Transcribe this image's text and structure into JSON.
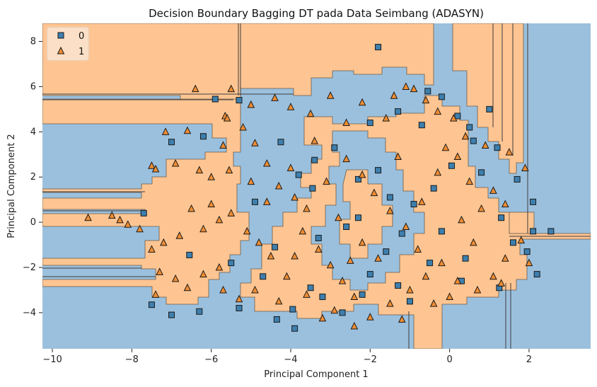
{
  "chart_data": {
    "type": "scatter",
    "title": "Decision Boundary Bagging DT pada Data Seimbang (ADASYN)",
    "xlabel": "Principal Component 1",
    "ylabel": "Principal Component 2",
    "xlim": [
      -10.25,
      3.55
    ],
    "ylim": [
      -5.6,
      8.8
    ],
    "xticks": [
      -10,
      -8,
      -6,
      -4,
      -2,
      0,
      2
    ],
    "yticks": [
      -4,
      -2,
      0,
      2,
      4,
      6,
      8
    ],
    "grid": false,
    "legend_position": "top-left",
    "region_colors": {
      "0": "#9bc0dd",
      "1": "#fec592"
    },
    "series": [
      {
        "name": "0",
        "marker": "square",
        "color": "#3d7fae",
        "points": [
          [
            -1.8,
            7.75
          ],
          [
            -5.9,
            5.45
          ],
          [
            -7.0,
            3.55
          ],
          [
            -6.2,
            3.8
          ],
          [
            -7.7,
            0.4
          ],
          [
            -5.3,
            5.4
          ],
          [
            -4.25,
            3.55
          ],
          [
            -3.4,
            2.75
          ],
          [
            -3.45,
            1.5
          ],
          [
            -2.3,
            1.9
          ],
          [
            -1.8,
            2.3
          ],
          [
            -1.5,
            1.1
          ],
          [
            -1.2,
            -0.5
          ],
          [
            -0.9,
            0.8
          ],
          [
            -0.55,
            5.8
          ],
          [
            -0.2,
            5.55
          ],
          [
            0.2,
            4.7
          ],
          [
            0.6,
            3.6
          ],
          [
            1.2,
            3.3
          ],
          [
            1.7,
            1.9
          ],
          [
            2.1,
            0.9
          ],
          [
            2.55,
            -0.4
          ],
          [
            2.1,
            -0.4
          ],
          [
            1.95,
            -1.3
          ],
          [
            2.2,
            -2.3
          ],
          [
            1.25,
            -2.9
          ],
          [
            0.3,
            -2.6
          ],
          [
            -0.5,
            -1.8
          ],
          [
            -1.3,
            -2.8
          ],
          [
            -2.2,
            -3.2
          ],
          [
            -3.2,
            -3.3
          ],
          [
            -3.95,
            -3.85
          ],
          [
            -4.35,
            -4.3
          ],
          [
            -3.9,
            -4.7
          ],
          [
            -2.7,
            -4.0
          ],
          [
            -5.3,
            -3.8
          ],
          [
            -6.3,
            -3.95
          ],
          [
            -7.0,
            -4.1
          ],
          [
            -7.5,
            -3.65
          ],
          [
            -6.55,
            -1.45
          ],
          [
            -4.7,
            -2.4
          ],
          [
            -4.4,
            -1.1
          ],
          [
            -3.3,
            -0.7
          ],
          [
            -2.6,
            -0.2
          ],
          [
            -2.3,
            0.2
          ],
          [
            -1.6,
            -1.3
          ],
          [
            -0.4,
            1.5
          ],
          [
            0.05,
            2.5
          ],
          [
            0.8,
            2.2
          ],
          [
            1.3,
            0.2
          ],
          [
            1.6,
            -0.9
          ],
          [
            0.4,
            -1.6
          ],
          [
            -0.2,
            -0.4
          ],
          [
            -2.9,
            3.3
          ],
          [
            -2.0,
            4.4
          ],
          [
            -1.3,
            4.9
          ],
          [
            -0.7,
            4.3
          ],
          [
            0.5,
            4.2
          ],
          [
            1.0,
            5.0
          ],
          [
            -3.8,
            2.1
          ],
          [
            -4.9,
            0.9
          ],
          [
            -5.5,
            -1.8
          ],
          [
            -2.0,
            -2.3
          ],
          [
            -1.0,
            -3.5
          ],
          [
            -3.5,
            -2.9
          ]
        ]
      },
      {
        "name": "1",
        "marker": "triangle",
        "color": "#f08d32",
        "points": [
          [
            -7.15,
            4.0
          ],
          [
            -6.6,
            4.05
          ],
          [
            -7.5,
            2.5
          ],
          [
            -7.4,
            2.35
          ],
          [
            -6.9,
            2.6
          ],
          [
            -6.3,
            2.3
          ],
          [
            -6.0,
            2.0
          ],
          [
            -5.55,
            2.3
          ],
          [
            -5.7,
            3.4
          ],
          [
            -5.65,
            4.7
          ],
          [
            -5.2,
            4.2
          ],
          [
            -4.9,
            3.5
          ],
          [
            -4.6,
            2.6
          ],
          [
            -4.3,
            1.6
          ],
          [
            -4.0,
            2.4
          ],
          [
            -3.9,
            1.1
          ],
          [
            -3.6,
            0.6
          ],
          [
            -3.7,
            -0.4
          ],
          [
            -3.3,
            -1.2
          ],
          [
            -3.0,
            -1.9
          ],
          [
            -2.7,
            -2.6
          ],
          [
            -2.4,
            -3.3
          ],
          [
            -2.9,
            -3.9
          ],
          [
            -3.2,
            -4.25
          ],
          [
            -3.6,
            -3.2
          ],
          [
            -4.1,
            -2.4
          ],
          [
            -4.5,
            -1.5
          ],
          [
            -4.8,
            -0.9
          ],
          [
            -5.1,
            -0.4
          ],
          [
            -5.5,
            0.4
          ],
          [
            -5.8,
            0.1
          ],
          [
            -6.2,
            -0.3
          ],
          [
            -6.5,
            0.6
          ],
          [
            -6.8,
            -0.6
          ],
          [
            -7.2,
            -0.9
          ],
          [
            -7.5,
            -1.2
          ],
          [
            -7.8,
            -0.3
          ],
          [
            -8.1,
            -0.1
          ],
          [
            -8.5,
            0.3
          ],
          [
            -9.1,
            0.2
          ],
          [
            -7.3,
            -2.2
          ],
          [
            -6.9,
            -2.5
          ],
          [
            -6.2,
            -2.3
          ],
          [
            -5.8,
            -2.0
          ],
          [
            -7.4,
            -3.2
          ],
          [
            -6.6,
            -2.9
          ],
          [
            -5.3,
            -3.4
          ],
          [
            -4.9,
            -3.0
          ],
          [
            -4.3,
            -3.5
          ],
          [
            -2.0,
            -4.2
          ],
          [
            -1.5,
            -3.6
          ],
          [
            -1.0,
            -3.0
          ],
          [
            -0.6,
            -2.4
          ],
          [
            -0.2,
            -1.8
          ],
          [
            0.2,
            -2.6
          ],
          [
            0.7,
            -3.0
          ],
          [
            1.1,
            -2.4
          ],
          [
            1.4,
            -1.6
          ],
          [
            1.8,
            -0.8
          ],
          [
            2.0,
            -1.8
          ],
          [
            0.6,
            -0.9
          ],
          [
            0.3,
            0.1
          ],
          [
            0.8,
            0.6
          ],
          [
            1.1,
            1.4
          ],
          [
            1.4,
            0.8
          ],
          [
            0.5,
            1.8
          ],
          [
            0.2,
            2.9
          ],
          [
            0.4,
            3.8
          ],
          [
            0.1,
            4.6
          ],
          [
            -0.3,
            4.9
          ],
          [
            -0.6,
            5.4
          ],
          [
            -0.9,
            5.9
          ],
          [
            -1.1,
            6.0
          ],
          [
            -1.4,
            5.6
          ],
          [
            -1.6,
            4.6
          ],
          [
            -2.2,
            5.3
          ],
          [
            -2.6,
            4.4
          ],
          [
            -3.0,
            5.6
          ],
          [
            -3.5,
            4.8
          ],
          [
            -4.0,
            5.1
          ],
          [
            -4.4,
            5.5
          ],
          [
            -5.0,
            5.2
          ],
          [
            -5.6,
            4.6
          ],
          [
            -6.4,
            5.9
          ],
          [
            -5.5,
            5.9
          ],
          [
            -2.6,
            2.8
          ],
          [
            -2.2,
            2.1
          ],
          [
            -1.9,
            1.3
          ],
          [
            -1.5,
            0.5
          ],
          [
            -1.1,
            -0.2
          ],
          [
            -0.7,
            0.9
          ],
          [
            -0.3,
            2.2
          ],
          [
            -0.1,
            3.3
          ],
          [
            -2.8,
            0.2
          ],
          [
            -3.1,
            1.8
          ],
          [
            -3.4,
            3.6
          ],
          [
            -1.3,
            2.9
          ],
          [
            -0.8,
            -1.2
          ],
          [
            -1.8,
            -1.6
          ],
          [
            -2.2,
            -0.9
          ],
          [
            -2.5,
            -1.7
          ],
          [
            -3.9,
            -1.5
          ],
          [
            -4.6,
            0.9
          ],
          [
            -5.0,
            1.8
          ],
          [
            -6.0,
            0.8
          ],
          [
            1.5,
            3.1
          ],
          [
            1.9,
            2.4
          ],
          [
            0.9,
            3.4
          ],
          [
            1.3,
            -2.7
          ],
          [
            0.0,
            -3.3
          ],
          [
            -0.4,
            -3.6
          ],
          [
            -1.2,
            -4.3
          ],
          [
            -2.4,
            -4.6
          ],
          [
            -5.7,
            -3.0
          ],
          [
            -8.3,
            0.1
          ]
        ]
      }
    ]
  }
}
